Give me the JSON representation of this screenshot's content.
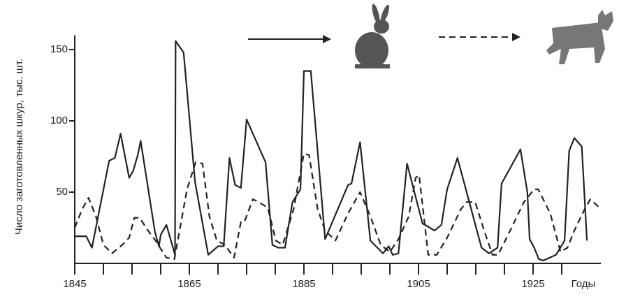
{
  "chart_data": {
    "type": "line",
    "ylabel": "Число заготовленных шкур, тыс. шт.",
    "xlabel": "Годы",
    "xlim": [
      1845,
      1937
    ],
    "xticks": [
      1845,
      1865,
      1885,
      1905,
      1925
    ],
    "minor_xticks": [
      1850,
      1855,
      1860,
      1870,
      1875,
      1880,
      1890,
      1895,
      1900,
      1910,
      1915,
      1920,
      1930
    ],
    "ylim": [
      0,
      160
    ],
    "yticks": [
      50,
      100,
      150
    ],
    "series": [
      {
        "color": "#222222",
        "dash": "solid",
        "x": [
          1845,
          1847,
          1848,
          1851,
          1852,
          1853,
          1854.5,
          1855.2,
          1856,
          1856.5,
          1859,
          1859.7,
          1860,
          1861,
          1862.5,
          1862.6,
          1864,
          1866,
          1868.3,
          1870,
          1871,
          1872,
          1873,
          1874,
          1875,
          1878.3,
          1879.5,
          1880.5,
          1881.7,
          1883,
          1884.4,
          1885,
          1886.2,
          1888.7,
          1892.7,
          1893.3,
          1894.8,
          1896.6,
          1898.8,
          1899.8,
          1900.5,
          1901.5,
          1903,
          1905.7,
          1907.8,
          1909,
          1910,
          1911.8,
          1916,
          1917.3,
          1918.8,
          1919.5,
          1922.8,
          1924,
          1924.4,
          1925.2,
          1926,
          1926.8,
          1929,
          1930.5,
          1931.3,
          1932.2,
          1933.5,
          1934.4
        ],
        "values": [
          19,
          19,
          11,
          72,
          74,
          91,
          60,
          65,
          76,
          86,
          22,
          12,
          20,
          27,
          6,
          156,
          148,
          57,
          6,
          12,
          12,
          74,
          55,
          53,
          101,
          71,
          13,
          11,
          11,
          43,
          52,
          135,
          135,
          17,
          55,
          56,
          85,
          16,
          7,
          12,
          6,
          7,
          70,
          28,
          23,
          27,
          52,
          74,
          11,
          7,
          11,
          56,
          80,
          50,
          17,
          11,
          3,
          2,
          6,
          16,
          79,
          88,
          82,
          16
        ]
      },
      {
        "color": "#222222",
        "dash": "dashed",
        "x": [
          1845,
          1846.3,
          1847.4,
          1848.7,
          1850,
          1851.5,
          1853.3,
          1854.5,
          1855.4,
          1856.3,
          1857.8,
          1859.1,
          1861,
          1862.4,
          1864.6,
          1866.1,
          1867.3,
          1868.5,
          1869.8,
          1871.2,
          1872.8,
          1874,
          1874.6,
          1876.1,
          1877.1,
          1878.7,
          1880.1,
          1881.3,
          1883.2,
          1885,
          1885.9,
          1887.4,
          1888.7,
          1890.5,
          1892.7,
          1894.8,
          1896.6,
          1898.4,
          1900,
          1901.5,
          1903.3,
          1904.5,
          1905.1,
          1906.7,
          1908.2,
          1910,
          1912.4,
          1913.4,
          1914.9,
          1916.3,
          1917.9,
          1918.9,
          1921,
          1923.4,
          1925.2,
          1925.9,
          1928,
          1929.8,
          1931,
          1932.2,
          1934,
          1935,
          1936.6
        ],
        "values": [
          25,
          38,
          46,
          33,
          13,
          7,
          13,
          18,
          32,
          32,
          23,
          16,
          4,
          3,
          52,
          71,
          70,
          33,
          16,
          13,
          4,
          29,
          29,
          45,
          43,
          39,
          16,
          13,
          38,
          77,
          76,
          38,
          23,
          16,
          35,
          50,
          33,
          13,
          8,
          17,
          33,
          60,
          62,
          6,
          6,
          18,
          38,
          43,
          43,
          25,
          6,
          6,
          23,
          43,
          52,
          52,
          35,
          8,
          11,
          23,
          38,
          45,
          39
        ]
      }
    ]
  }
}
